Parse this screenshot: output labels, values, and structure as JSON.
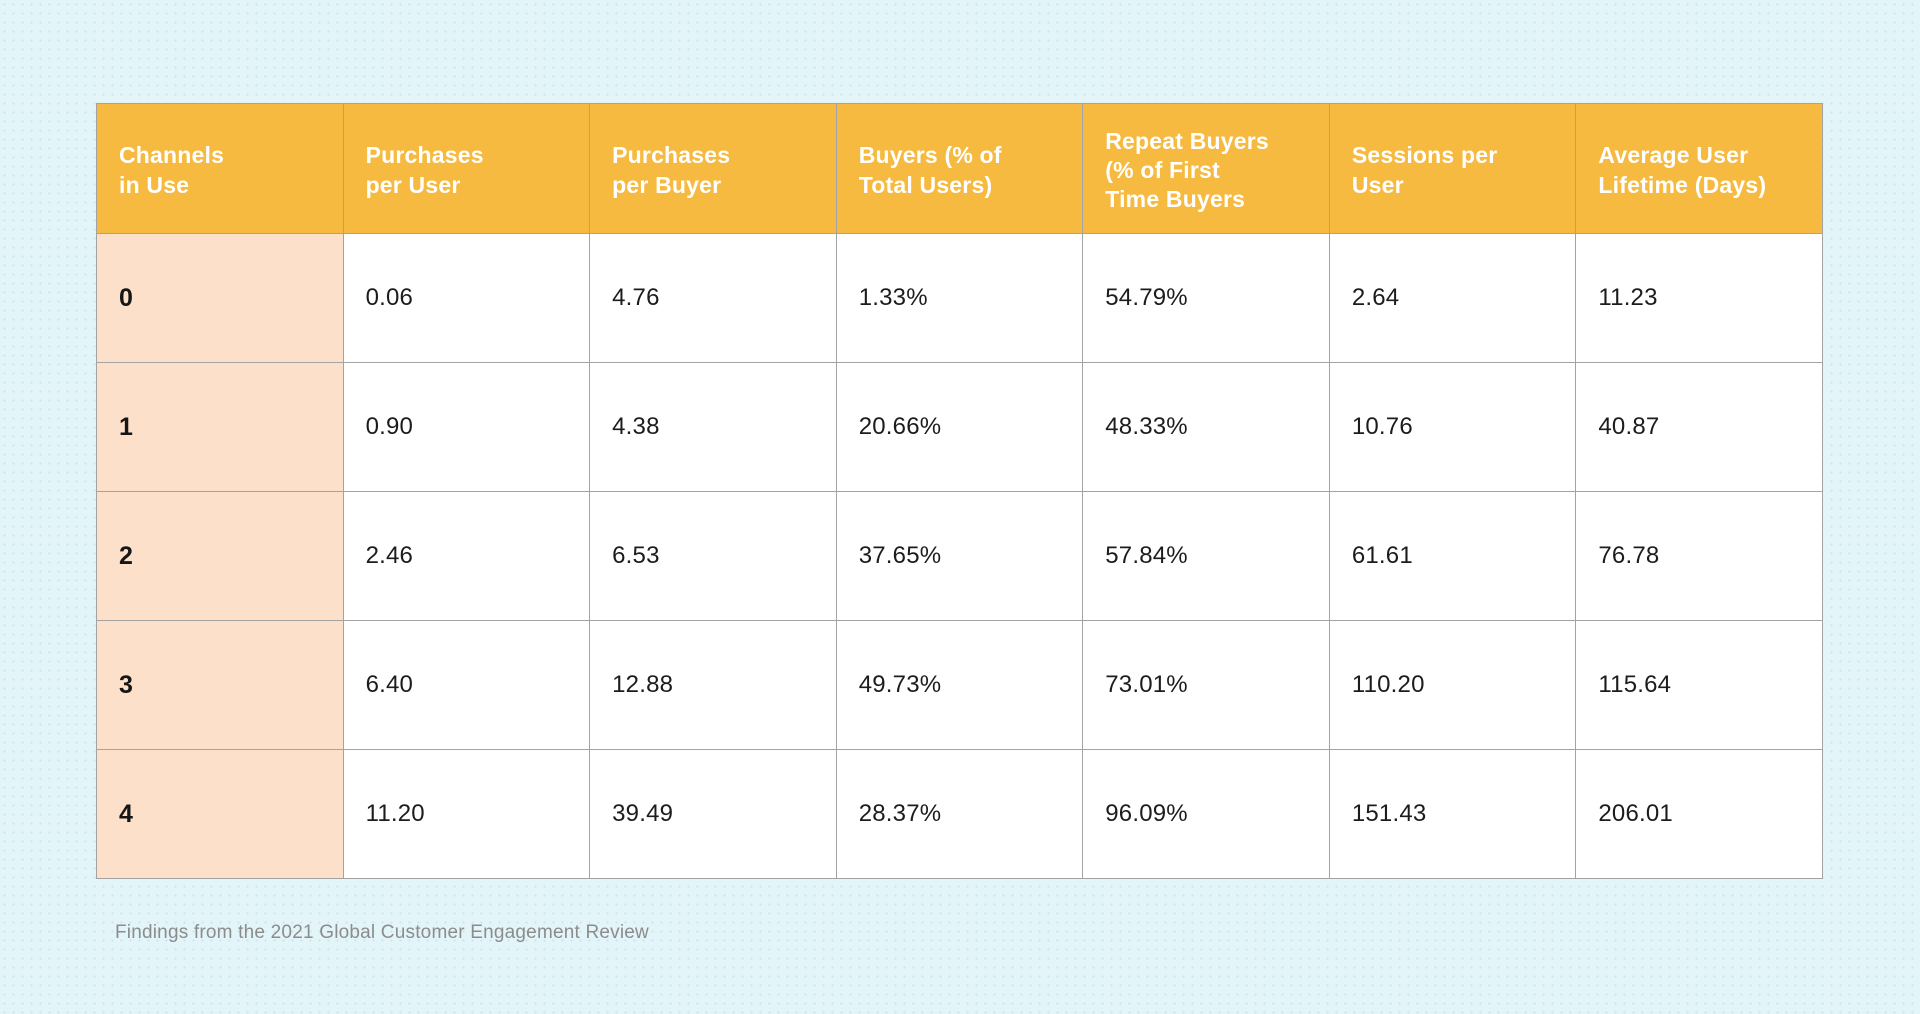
{
  "table": {
    "columns": [
      {
        "label": "Channels\nin Use"
      },
      {
        "label": "Purchases\nper User"
      },
      {
        "label": "Purchases\nper Buyer"
      },
      {
        "label": "Buyers (% of\nTotal Users)"
      },
      {
        "label": "Repeat Buyers\n(% of First\nTime Buyers"
      },
      {
        "label": "Sessions per\nUser"
      },
      {
        "label": "Average User\nLifetime (Days)"
      }
    ],
    "rows": [
      {
        "label": "0",
        "values": [
          "0.06",
          "4.76",
          "1.33%",
          "54.79%",
          "2.64",
          "11.23"
        ]
      },
      {
        "label": "1",
        "values": [
          "0.90",
          "4.38",
          "20.66%",
          "48.33%",
          "10.76",
          "40.87"
        ]
      },
      {
        "label": "2",
        "values": [
          "2.46",
          "6.53",
          "37.65%",
          "57.84%",
          "61.61",
          "76.78"
        ]
      },
      {
        "label": "3",
        "values": [
          "6.40",
          "12.88",
          "49.73%",
          "73.01%",
          "110.20",
          "115.64"
        ]
      },
      {
        "label": "4",
        "values": [
          "11.20",
          "39.49",
          "28.37%",
          "96.09%",
          "151.43",
          "206.01"
        ]
      }
    ]
  },
  "footer": {
    "source_note": "Findings from the 2021 Global Customer Engagement Review"
  },
  "colors": {
    "page_background": "#e3f5f9",
    "header_background": "#f6ba41",
    "header_text": "#ffffff",
    "row_label_background": "#fce0c9",
    "cell_background": "#ffffff",
    "border": "#a3a3a3",
    "footer_text": "#8c8c8c"
  }
}
